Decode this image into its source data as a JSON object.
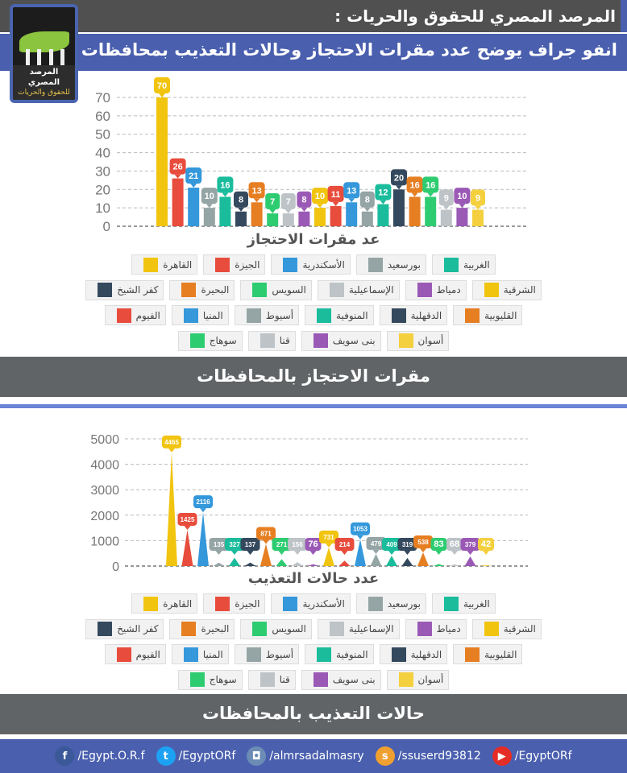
{
  "header": {
    "org_title": "المرصد المصري للحقوق والحريات :",
    "subtitle": "انفو جراف يوضح عدد مقرات الاحتجاز وحالات التعذيب بمحافظات مصر :"
  },
  "logo": {
    "name": "المرصد المصري",
    "tagline": "للحقوق والحريات"
  },
  "governorates": [
    "القاهرة",
    "الجيزة",
    "الأسكندرية",
    "بورسعيد",
    "الغربية",
    "كفر الشيخ",
    "البحيرة",
    "السويس",
    "الإسماعيلية",
    "دمياط",
    "الشرقية",
    "الفيوم",
    "المنيا",
    "أسيوط",
    "المنوفية",
    "الدقهلية",
    "القليوبية",
    "سوهاج",
    "قنا",
    "بنى سويف",
    "أسوان"
  ],
  "colors": [
    "#f1c40f",
    "#e74c3c",
    "#3498db",
    "#95a5a6",
    "#1abc9c",
    "#34495e",
    "#e67e22",
    "#2ecc71",
    "#bdc3c7",
    "#9b59b6",
    "#f1c40f",
    "#e74c3c",
    "#3498db",
    "#95a5a6",
    "#1abc9c",
    "#34495e",
    "#e67e22",
    "#2ecc71",
    "#bdc3c7",
    "#9b59b6",
    "#f4d03f"
  ],
  "chart_data": [
    {
      "type": "bar",
      "title": "عد مقرات الاحتجاز",
      "categories": [
        "القاهرة",
        "الجيزة",
        "الأسكندرية",
        "بورسعيد",
        "الغربية",
        "كفر الشيخ",
        "البحيرة",
        "السويس",
        "الإسماعيلية",
        "دمياط",
        "الشرقية",
        "الفيوم",
        "المنيا",
        "أسيوط",
        "المنوفية",
        "الدقهلية",
        "القليوبية",
        "سوهاج",
        "قنا",
        "بنى سويف",
        "أسوان"
      ],
      "values": [
        70,
        26,
        21,
        10,
        16,
        8,
        13,
        7,
        7,
        8,
        10,
        11,
        13,
        8,
        12,
        20,
        16,
        16,
        9,
        10,
        9
      ],
      "ylim": [
        0,
        70
      ],
      "yticks": [
        0,
        10,
        20,
        30,
        40,
        50,
        60,
        70
      ],
      "grid": true,
      "legend": "bottom",
      "banner": "مقرات الاحتجاز بالمحافظات"
    },
    {
      "type": "bar",
      "title": "عدد حالات التعذيب",
      "categories": [
        "القاهرة",
        "الجيزة",
        "الأسكندرية",
        "بورسعيد",
        "الغربية",
        "كفر الشيخ",
        "البحيرة",
        "السويس",
        "الإسماعيلية",
        "دمياط",
        "الشرقية",
        "الفيوم",
        "المنيا",
        "أسيوط",
        "المنوفية",
        "الدقهلية",
        "القليوبية",
        "سوهاج",
        "قنا",
        "بنى سويف",
        "أسوان"
      ],
      "values": [
        4465,
        1425,
        2116,
        135,
        327,
        137,
        871,
        271,
        156,
        76,
        731,
        214,
        1053,
        479,
        409,
        319,
        538,
        83,
        68,
        379,
        42
      ],
      "ylim": [
        0,
        5000
      ],
      "yticks": [
        0,
        1000,
        2000,
        3000,
        4000,
        5000
      ],
      "grid": true,
      "legend": "bottom",
      "banner": "حالات التعذيب بالمحافظات"
    }
  ],
  "footer": [
    {
      "icon": "facebook-icon",
      "label": "/Egypt.O.R.f",
      "color": "#3b5998",
      "glyph": "f"
    },
    {
      "icon": "twitter-icon",
      "label": "/EgyptORf",
      "color": "#1da1f2",
      "glyph": "t"
    },
    {
      "icon": "instagram-icon",
      "label": "/almrsadalmasry",
      "color": "#6b8db5",
      "glyph": "◘"
    },
    {
      "icon": "slideshare-icon",
      "label": "/ssuserd93812",
      "color": "#f0a030",
      "glyph": "s"
    },
    {
      "icon": "youtube-icon",
      "label": "/EgyptORf",
      "color": "#e52d27",
      "glyph": "▶"
    }
  ]
}
